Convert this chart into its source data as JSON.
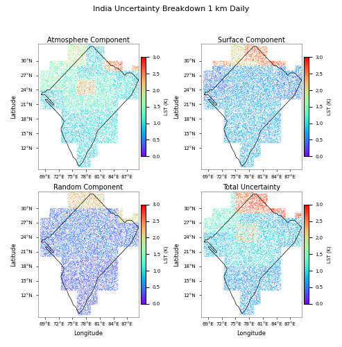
{
  "title": "India Uncertainty Breakdown 1 km Daily",
  "titles": [
    "Atmosphere Component",
    "Surface Component",
    "Random Component",
    "Total Uncertainty"
  ],
  "cbar_label": "LST (K)",
  "cmap": "rainbow",
  "vmin": 0.0,
  "vmax": 3.0,
  "cbar_ticks": [
    0.0,
    0.5,
    1.0,
    1.5,
    2.0,
    2.5,
    3.0
  ],
  "lon_min": 67.5,
  "lon_max": 89.5,
  "lat_min": 7.5,
  "lat_max": 33.5,
  "xticks": [
    69,
    72,
    75,
    78,
    81,
    84,
    87
  ],
  "yticks": [
    12,
    15,
    18,
    21,
    24,
    27,
    30
  ],
  "xlabel": "Longitude",
  "ylabel": "Latitude",
  "figsize": [
    4.93,
    5.0
  ],
  "dpi": 100,
  "title_fontsize": 8,
  "subplot_title_fontsize": 7,
  "tick_fontsize": 5,
  "label_fontsize": 6,
  "cbar_fontsize": 5,
  "cbar_title_fontsize": 5,
  "marker_size": 1.2,
  "background_color": "white",
  "n_points": 15000,
  "random_seed": 42
}
